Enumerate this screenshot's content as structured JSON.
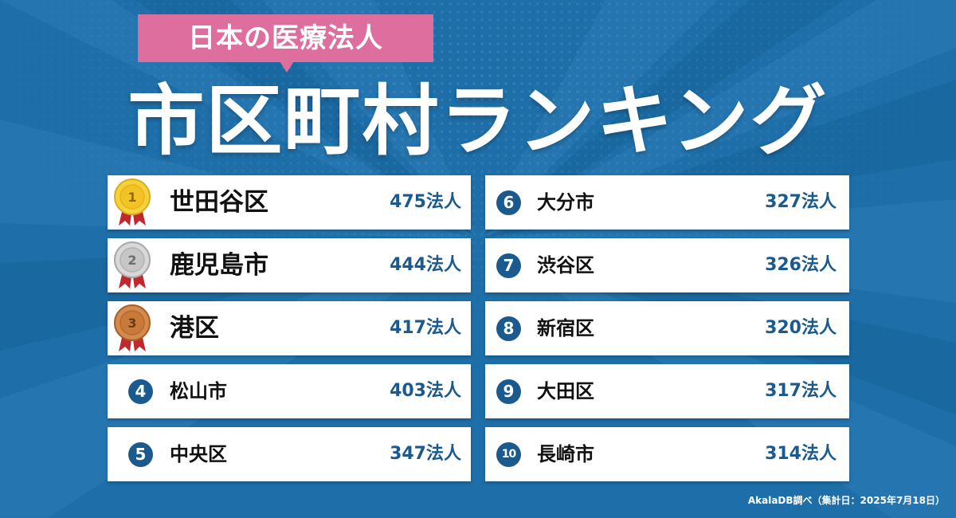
{
  "subtitle": "日本の医療法人",
  "title": "市区町村ランキング",
  "colors": {
    "background": "#1e6fa9",
    "accent_pink": "#de6e9d",
    "rank_badge": "#1a5a8f",
    "count_text": "#1a5a8f",
    "gold": "#f5d23c",
    "silver": "#c6c6c6",
    "bronze": "#c97a3a",
    "ribbon": "#c0282e"
  },
  "rankings": [
    {
      "rank": "1",
      "name": "世田谷区",
      "count": "475法人",
      "badge": "gold-medal-icon"
    },
    {
      "rank": "2",
      "name": "鹿児島市",
      "count": "444法人",
      "badge": "silver-medal-icon"
    },
    {
      "rank": "3",
      "name": "港区",
      "count": "417法人",
      "badge": "bronze-medal-icon"
    },
    {
      "rank": "4",
      "name": "松山市",
      "count": "403法人",
      "badge": "number-badge"
    },
    {
      "rank": "5",
      "name": "中央区",
      "count": "347法人",
      "badge": "number-badge"
    },
    {
      "rank": "6",
      "name": "大分市",
      "count": "327法人",
      "badge": "number-badge"
    },
    {
      "rank": "7",
      "name": "渋谷区",
      "count": "326法人",
      "badge": "number-badge"
    },
    {
      "rank": "8",
      "name": "新宿区",
      "count": "320法人",
      "badge": "number-badge"
    },
    {
      "rank": "9",
      "name": "大田区",
      "count": "317法人",
      "badge": "number-badge"
    },
    {
      "rank": "10",
      "name": "長崎市",
      "count": "314法人",
      "badge": "number-badge"
    }
  ],
  "source": "AkalaDB調べ（集計日：2025年7月18日）"
}
